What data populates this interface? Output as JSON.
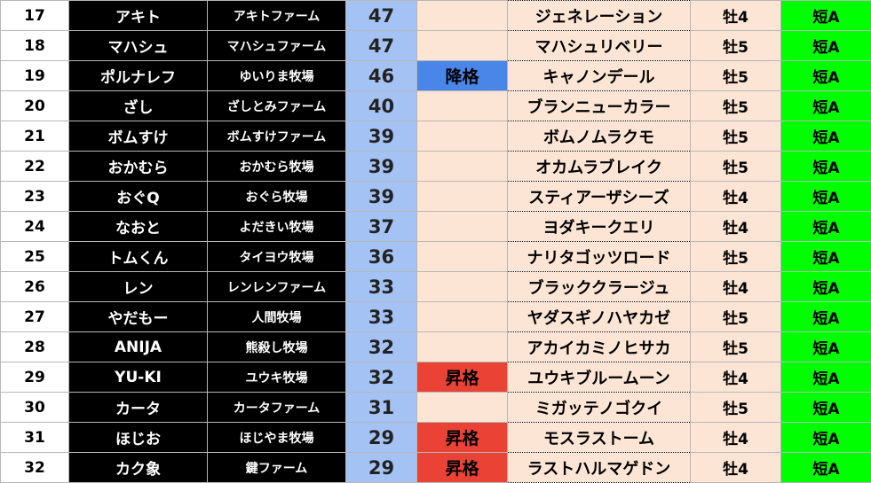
{
  "colors": {
    "score": "#a4c2f4",
    "promoted": "#ea4335",
    "demoted": "#4a86e8",
    "grade": "#00ff00",
    "peach": "#fce5d4"
  },
  "rows": [
    {
      "rank": "17",
      "name": "アキト",
      "farm": "アキトファーム",
      "score": "47",
      "status": "",
      "horse": "ジェネレーション",
      "sex": "牡4",
      "grade": "短A"
    },
    {
      "rank": "18",
      "name": "マハシュ",
      "farm": "マハシュファーム",
      "score": "47",
      "status": "",
      "horse": "マハシュリベリー",
      "sex": "牡5",
      "grade": "短A"
    },
    {
      "rank": "19",
      "name": "ポルナレフ",
      "farm": "ゆいりま牧場",
      "score": "46",
      "status": "降格",
      "horse": "キャノンデール",
      "sex": "牡5",
      "grade": "短A"
    },
    {
      "rank": "20",
      "name": "ざし",
      "farm": "ざしとみファーム",
      "score": "40",
      "status": "",
      "horse": "ブランニューカラー",
      "sex": "牡5",
      "grade": "短A"
    },
    {
      "rank": "21",
      "name": "ボムすけ",
      "farm": "ボムすけファーム",
      "score": "39",
      "status": "",
      "horse": "ボムノムラクモ",
      "sex": "牡5",
      "grade": "短A"
    },
    {
      "rank": "22",
      "name": "おかむら",
      "farm": "おかむら牧場",
      "score": "39",
      "status": "",
      "horse": "オカムラブレイク",
      "sex": "牡5",
      "grade": "短A"
    },
    {
      "rank": "23",
      "name": "おぐQ",
      "farm": "おぐら牧場",
      "score": "39",
      "status": "",
      "horse": "スティアーザシーズ",
      "sex": "牡4",
      "grade": "短A"
    },
    {
      "rank": "24",
      "name": "なおと",
      "farm": "よだきい牧場",
      "score": "37",
      "status": "",
      "horse": "ヨダキークエリ",
      "sex": "牡4",
      "grade": "短A"
    },
    {
      "rank": "25",
      "name": "トムくん",
      "farm": "タイヨウ牧場",
      "score": "36",
      "status": "",
      "horse": "ナリタゴッツロード",
      "sex": "牡5",
      "grade": "短A"
    },
    {
      "rank": "26",
      "name": "レン",
      "farm": "レンレンファーム",
      "score": "33",
      "status": "",
      "horse": "ブラッククラージュ",
      "sex": "牡4",
      "grade": "短A"
    },
    {
      "rank": "27",
      "name": "やだもー",
      "farm": "人間牧場",
      "score": "33",
      "status": "",
      "horse": "ヤダスギノハヤカゼ",
      "sex": "牡5",
      "grade": "短A"
    },
    {
      "rank": "28",
      "name": "ANIJA",
      "farm": "熊殺し牧場",
      "score": "32",
      "status": "",
      "horse": "アカイカミノヒサカ",
      "sex": "牡5",
      "grade": "短A"
    },
    {
      "rank": "29",
      "name": "YU-KI",
      "farm": "ユウキ牧場",
      "score": "32",
      "status": "昇格",
      "horse": "ユウキブルームーン",
      "sex": "牡4",
      "grade": "短A"
    },
    {
      "rank": "30",
      "name": "カータ",
      "farm": "カータファーム",
      "score": "31",
      "status": "",
      "horse": "ミガッテノゴクイ",
      "sex": "牡5",
      "grade": "短A"
    },
    {
      "rank": "31",
      "name": "ほじお",
      "farm": "ほじやま牧場",
      "score": "29",
      "status": "昇格",
      "horse": "モスラストーム",
      "sex": "牡4",
      "grade": "短A"
    },
    {
      "rank": "32",
      "name": "カク象",
      "farm": "鍵ファーム",
      "score": "29",
      "status": "昇格",
      "horse": "ラストハルマゲドン",
      "sex": "牡4",
      "grade": "短A"
    }
  ]
}
